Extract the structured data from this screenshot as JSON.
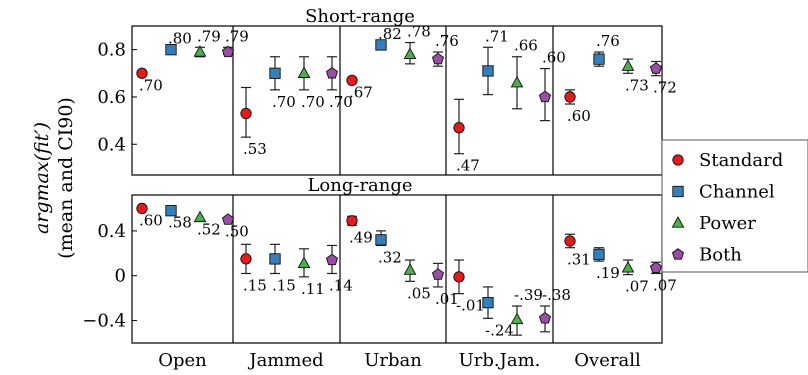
{
  "chart_data": {
    "type": "scatter",
    "ylabel_line1": "argmax(fit′)",
    "ylabel_line2": "(mean and CI90)",
    "ylabel_sub": "90",
    "categories": [
      "Open",
      "Jammed",
      "Urban",
      "Urb.Jam.",
      "Overall"
    ],
    "legend_position": "right",
    "series": [
      {
        "name": "Standard",
        "color": "#e41a1c",
        "marker": "circle"
      },
      {
        "name": "Channel",
        "color": "#377eb8",
        "marker": "square"
      },
      {
        "name": "Power",
        "color": "#4daf4a",
        "marker": "triangle"
      },
      {
        "name": "Both",
        "color": "#984ea3",
        "marker": "pentagon"
      }
    ],
    "panels": [
      {
        "title": "Short-range",
        "ylim": [
          0.27,
          0.9
        ],
        "yticks": [
          {
            "v": 0.4,
            "label": "0.4"
          },
          {
            "v": 0.6,
            "label": "0.6"
          },
          {
            "v": 0.8,
            "label": "0.8"
          }
        ],
        "groups": [
          {
            "category": "Open",
            "points": [
              {
                "series": "Standard",
                "value": 0.7,
                "lo": 0.7,
                "hi": 0.7,
                "label": ".70"
              },
              {
                "series": "Channel",
                "value": 0.8,
                "lo": 0.8,
                "hi": 0.8,
                "label": ".80"
              },
              {
                "series": "Power",
                "value": 0.79,
                "lo": 0.77,
                "hi": 0.81,
                "label": ".79"
              },
              {
                "series": "Both",
                "value": 0.79,
                "lo": 0.78,
                "hi": 0.81,
                "label": ".79"
              }
            ]
          },
          {
            "category": "Jammed",
            "points": [
              {
                "series": "Standard",
                "value": 0.53,
                "lo": 0.43,
                "hi": 0.64,
                "label": ".53"
              },
              {
                "series": "Channel",
                "value": 0.7,
                "lo": 0.63,
                "hi": 0.77,
                "label": ".70"
              },
              {
                "series": "Power",
                "value": 0.7,
                "lo": 0.63,
                "hi": 0.77,
                "label": ".70"
              },
              {
                "series": "Both",
                "value": 0.7,
                "lo": 0.63,
                "hi": 0.77,
                "label": ".70"
              }
            ]
          },
          {
            "category": "Urban",
            "points": [
              {
                "series": "Standard",
                "value": 0.67,
                "lo": 0.67,
                "hi": 0.67,
                "label": ".67"
              },
              {
                "series": "Channel",
                "value": 0.82,
                "lo": 0.82,
                "hi": 0.82,
                "label": ".82"
              },
              {
                "series": "Power",
                "value": 0.78,
                "lo": 0.74,
                "hi": 0.83,
                "label": ".78"
              },
              {
                "series": "Both",
                "value": 0.76,
                "lo": 0.73,
                "hi": 0.79,
                "label": ".76"
              }
            ]
          },
          {
            "category": "Urb.Jam.",
            "points": [
              {
                "series": "Standard",
                "value": 0.47,
                "lo": 0.36,
                "hi": 0.59,
                "label": ".47"
              },
              {
                "series": "Channel",
                "value": 0.71,
                "lo": 0.61,
                "hi": 0.81,
                "label": ".71"
              },
              {
                "series": "Power",
                "value": 0.66,
                "lo": 0.55,
                "hi": 0.77,
                "label": ".66"
              },
              {
                "series": "Both",
                "value": 0.6,
                "lo": 0.5,
                "hi": 0.72,
                "label": ".60"
              }
            ]
          },
          {
            "category": "Overall",
            "points": [
              {
                "series": "Standard",
                "value": 0.6,
                "lo": 0.57,
                "hi": 0.63,
                "label": ".60"
              },
              {
                "series": "Channel",
                "value": 0.76,
                "lo": 0.73,
                "hi": 0.79,
                "label": ".76"
              },
              {
                "series": "Power",
                "value": 0.73,
                "lo": 0.7,
                "hi": 0.76,
                "label": ".73"
              },
              {
                "series": "Both",
                "value": 0.72,
                "lo": 0.69,
                "hi": 0.75,
                "label": ".72"
              }
            ]
          }
        ]
      },
      {
        "title": "Long-range",
        "ylim": [
          -0.6,
          0.72
        ],
        "yticks": [
          {
            "v": -0.4,
            "label": "−0.4"
          },
          {
            "v": 0,
            "label": "0"
          },
          {
            "v": 0.4,
            "label": "0.4"
          }
        ],
        "groups": [
          {
            "category": "Open",
            "points": [
              {
                "series": "Standard",
                "value": 0.6,
                "lo": 0.6,
                "hi": 0.6,
                "label": ".60"
              },
              {
                "series": "Channel",
                "value": 0.58,
                "lo": 0.58,
                "hi": 0.58,
                "label": ".58"
              },
              {
                "series": "Power",
                "value": 0.52,
                "lo": 0.52,
                "hi": 0.52,
                "label": ".52"
              },
              {
                "series": "Both",
                "value": 0.5,
                "lo": 0.5,
                "hi": 0.5,
                "label": ".50"
              }
            ]
          },
          {
            "category": "Jammed",
            "points": [
              {
                "series": "Standard",
                "value": 0.15,
                "lo": 0.02,
                "hi": 0.28,
                "label": ".15"
              },
              {
                "series": "Channel",
                "value": 0.15,
                "lo": 0.02,
                "hi": 0.28,
                "label": ".15"
              },
              {
                "series": "Power",
                "value": 0.11,
                "lo": -0.01,
                "hi": 0.24,
                "label": ".11"
              },
              {
                "series": "Both",
                "value": 0.14,
                "lo": 0.02,
                "hi": 0.27,
                "label": ".14"
              }
            ]
          },
          {
            "category": "Urban",
            "points": [
              {
                "series": "Standard",
                "value": 0.49,
                "lo": 0.45,
                "hi": 0.53,
                "label": ".49"
              },
              {
                "series": "Channel",
                "value": 0.32,
                "lo": 0.27,
                "hi": 0.4,
                "label": ".32"
              },
              {
                "series": "Power",
                "value": 0.05,
                "lo": -0.05,
                "hi": 0.14,
                "label": ".05"
              },
              {
                "series": "Both",
                "value": 0.01,
                "lo": -0.1,
                "hi": 0.11,
                "label": ".01"
              }
            ]
          },
          {
            "category": "Urb.Jam.",
            "points": [
              {
                "series": "Standard",
                "value": -0.01,
                "lo": -0.16,
                "hi": 0.14,
                "label": "-.01"
              },
              {
                "series": "Channel",
                "value": -0.24,
                "lo": -0.38,
                "hi": -0.1,
                "label": "-.24"
              },
              {
                "series": "Power",
                "value": -0.39,
                "lo": -0.53,
                "hi": -0.27,
                "label": "-.39"
              },
              {
                "series": "Both",
                "value": -0.38,
                "lo": -0.5,
                "hi": -0.27,
                "label": "-.38"
              }
            ]
          },
          {
            "category": "Overall",
            "points": [
              {
                "series": "Standard",
                "value": 0.31,
                "lo": 0.25,
                "hi": 0.37,
                "label": ".31"
              },
              {
                "series": "Channel",
                "value": 0.19,
                "lo": 0.13,
                "hi": 0.25,
                "label": ".19"
              },
              {
                "series": "Power",
                "value": 0.07,
                "lo": 0.01,
                "hi": 0.14,
                "label": ".07"
              },
              {
                "series": "Both",
                "value": 0.07,
                "lo": 0.02,
                "hi": 0.12,
                "label": ".07"
              }
            ]
          }
        ]
      }
    ]
  }
}
